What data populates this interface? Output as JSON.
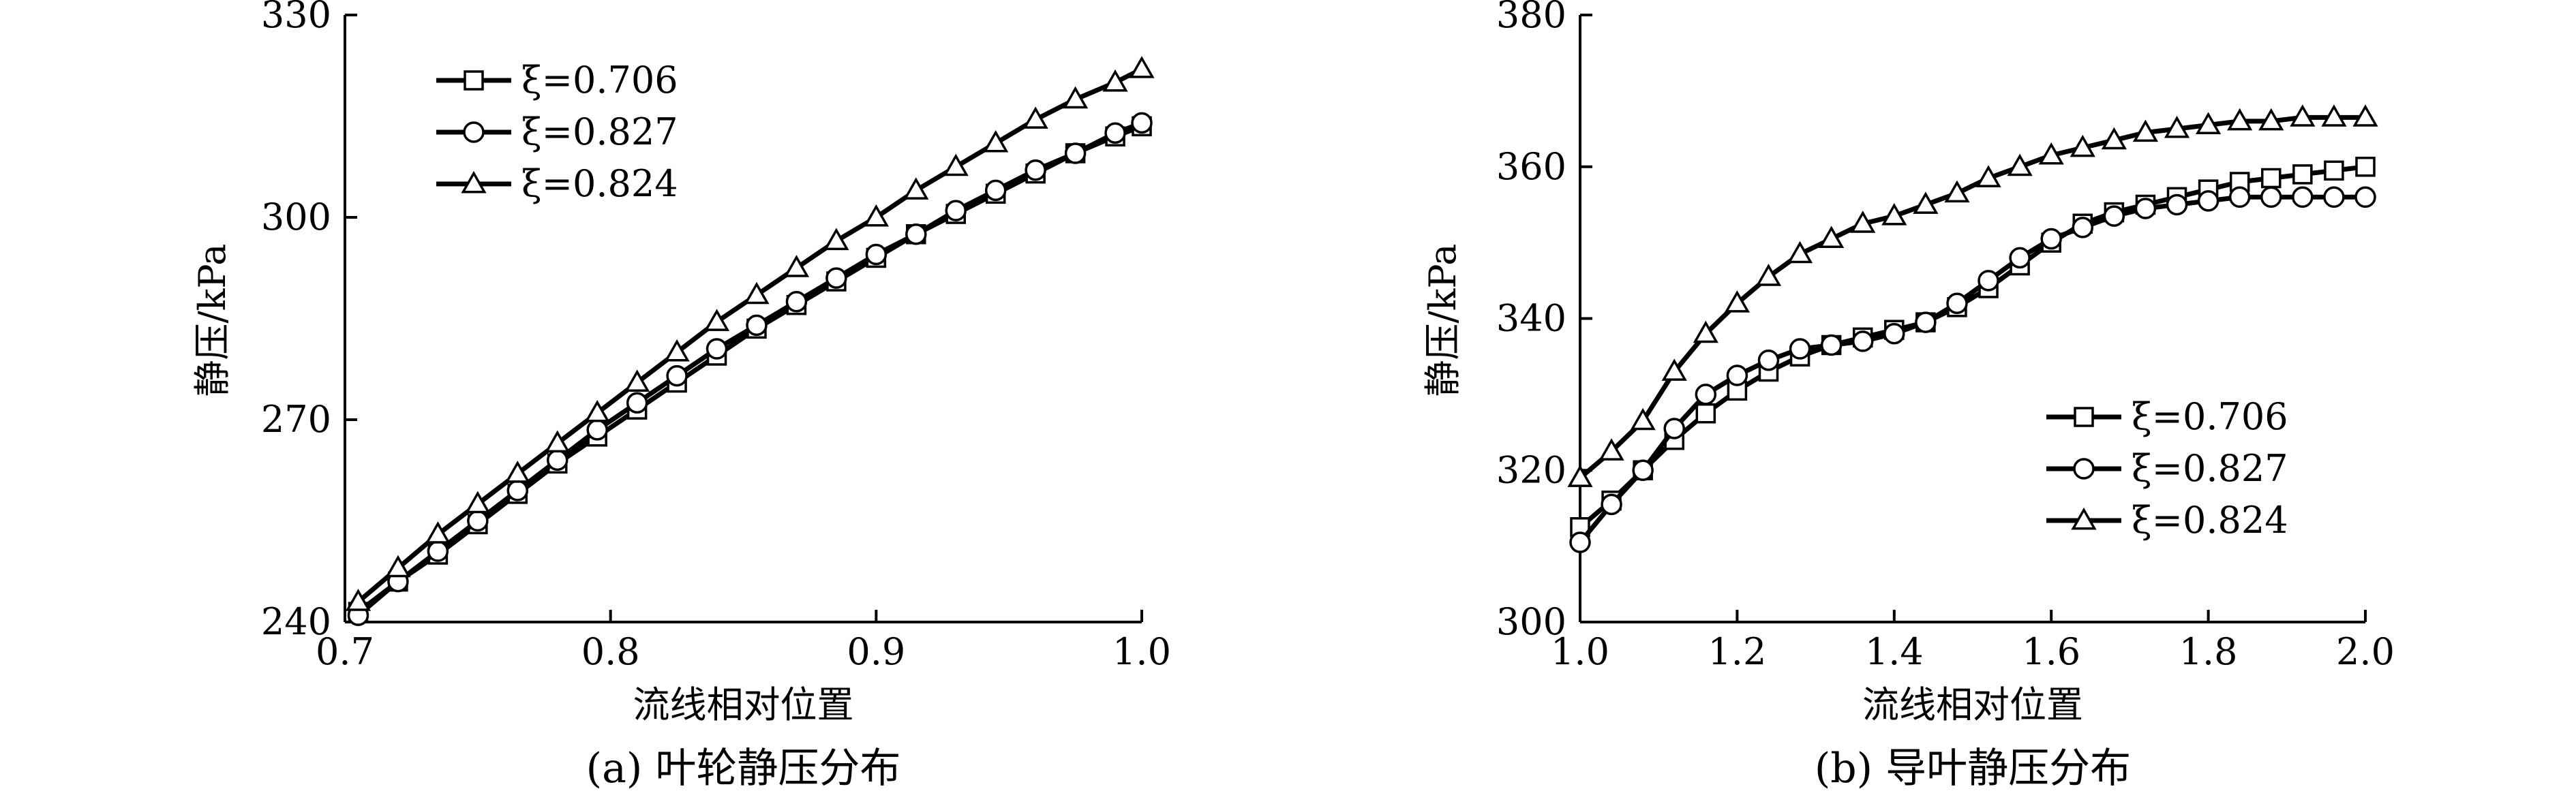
{
  "chart_data": [
    {
      "type": "line",
      "title": "(a) 叶轮静压分布",
      "xlabel": "流线相对位置",
      "ylabel": "静压/kPa",
      "xlim": [
        0.7,
        1.0
      ],
      "ylim": [
        240,
        330
      ],
      "xticks": [
        "0.7",
        "0.8",
        "0.9",
        "1.0"
      ],
      "yticks": [
        "240",
        "270",
        "300",
        "330"
      ],
      "grid": false,
      "legend_position": "top-left",
      "series": [
        {
          "name": "ξ=0.706",
          "marker": "square",
          "x": [
            0.705,
            0.72,
            0.735,
            0.75,
            0.765,
            0.78,
            0.795,
            0.81,
            0.825,
            0.84,
            0.855,
            0.87,
            0.885,
            0.9,
            0.915,
            0.93,
            0.945,
            0.96,
            0.975,
            0.99,
            1.0
          ],
          "y": [
            241.5,
            246.0,
            250.0,
            254.5,
            259.0,
            263.5,
            267.5,
            271.5,
            275.5,
            279.5,
            283.5,
            287.0,
            290.5,
            294.0,
            297.5,
            300.5,
            303.5,
            306.5,
            309.5,
            312.0,
            313.5
          ]
        },
        {
          "name": "ξ=0.827",
          "marker": "circle",
          "x": [
            0.705,
            0.72,
            0.735,
            0.75,
            0.765,
            0.78,
            0.795,
            0.81,
            0.825,
            0.84,
            0.855,
            0.87,
            0.885,
            0.9,
            0.915,
            0.93,
            0.945,
            0.96,
            0.975,
            0.99,
            1.0
          ],
          "y": [
            241.0,
            246.0,
            250.5,
            255.0,
            259.5,
            264.0,
            268.5,
            272.5,
            276.5,
            280.5,
            284.0,
            287.5,
            291.0,
            294.5,
            297.5,
            301.0,
            304.0,
            307.0,
            309.5,
            312.5,
            314.0
          ]
        },
        {
          "name": "ξ=0.824",
          "marker": "triangle",
          "x": [
            0.705,
            0.72,
            0.735,
            0.75,
            0.765,
            0.78,
            0.795,
            0.81,
            0.825,
            0.84,
            0.855,
            0.87,
            0.885,
            0.9,
            0.915,
            0.93,
            0.945,
            0.96,
            0.975,
            0.99,
            1.0
          ],
          "y": [
            243.0,
            248.0,
            253.0,
            257.5,
            262.0,
            266.5,
            271.0,
            275.5,
            280.0,
            284.5,
            288.5,
            292.5,
            296.5,
            300.0,
            304.0,
            307.5,
            311.0,
            314.5,
            317.5,
            320.0,
            322.0
          ]
        }
      ]
    },
    {
      "type": "line",
      "title": "(b) 导叶静压分布",
      "xlabel": "流线相对位置",
      "ylabel": "静压/kPa",
      "xlim": [
        1.0,
        2.0
      ],
      "ylim": [
        300,
        380
      ],
      "xticks": [
        "1.0",
        "1.2",
        "1.4",
        "1.6",
        "1.8",
        "2.0"
      ],
      "yticks": [
        "300",
        "320",
        "340",
        "360",
        "380"
      ],
      "grid": false,
      "legend_position": "bottom-right",
      "series": [
        {
          "name": "ξ=0.706",
          "marker": "square",
          "x": [
            1.0,
            1.04,
            1.08,
            1.12,
            1.16,
            1.2,
            1.24,
            1.28,
            1.32,
            1.36,
            1.4,
            1.44,
            1.48,
            1.52,
            1.56,
            1.6,
            1.64,
            1.68,
            1.72,
            1.76,
            1.8,
            1.84,
            1.88,
            1.92,
            1.96,
            2.0
          ],
          "y": [
            312.5,
            316.0,
            320.0,
            324.0,
            327.5,
            330.5,
            333.0,
            335.0,
            336.5,
            337.5,
            338.5,
            339.5,
            341.5,
            344.0,
            347.0,
            350.0,
            352.5,
            354.0,
            355.0,
            356.0,
            357.0,
            358.0,
            358.5,
            359.0,
            359.5,
            360.0
          ]
        },
        {
          "name": "ξ=0.827",
          "marker": "circle",
          "x": [
            1.0,
            1.04,
            1.08,
            1.12,
            1.16,
            1.2,
            1.24,
            1.28,
            1.32,
            1.36,
            1.4,
            1.44,
            1.48,
            1.52,
            1.56,
            1.6,
            1.64,
            1.68,
            1.72,
            1.76,
            1.8,
            1.84,
            1.88,
            1.92,
            1.96,
            2.0
          ],
          "y": [
            310.5,
            315.5,
            320.0,
            325.5,
            330.0,
            332.5,
            334.5,
            336.0,
            336.5,
            337.0,
            338.0,
            339.5,
            342.0,
            345.0,
            348.0,
            350.5,
            352.0,
            353.5,
            354.5,
            355.0,
            355.5,
            356.0,
            356.0,
            356.0,
            356.0,
            356.0
          ]
        },
        {
          "name": "ξ=0.824",
          "marker": "triangle",
          "x": [
            1.0,
            1.04,
            1.08,
            1.12,
            1.16,
            1.2,
            1.24,
            1.28,
            1.32,
            1.36,
            1.4,
            1.44,
            1.48,
            1.52,
            1.56,
            1.6,
            1.64,
            1.68,
            1.72,
            1.76,
            1.8,
            1.84,
            1.88,
            1.92,
            1.96,
            2.0
          ],
          "y": [
            319.0,
            322.5,
            326.5,
            333.0,
            338.0,
            342.0,
            345.5,
            348.5,
            350.5,
            352.5,
            353.5,
            355.0,
            356.5,
            358.5,
            360.0,
            361.5,
            362.5,
            363.5,
            364.5,
            365.0,
            365.5,
            366.0,
            366.0,
            366.5,
            366.5,
            366.5
          ]
        }
      ]
    }
  ]
}
